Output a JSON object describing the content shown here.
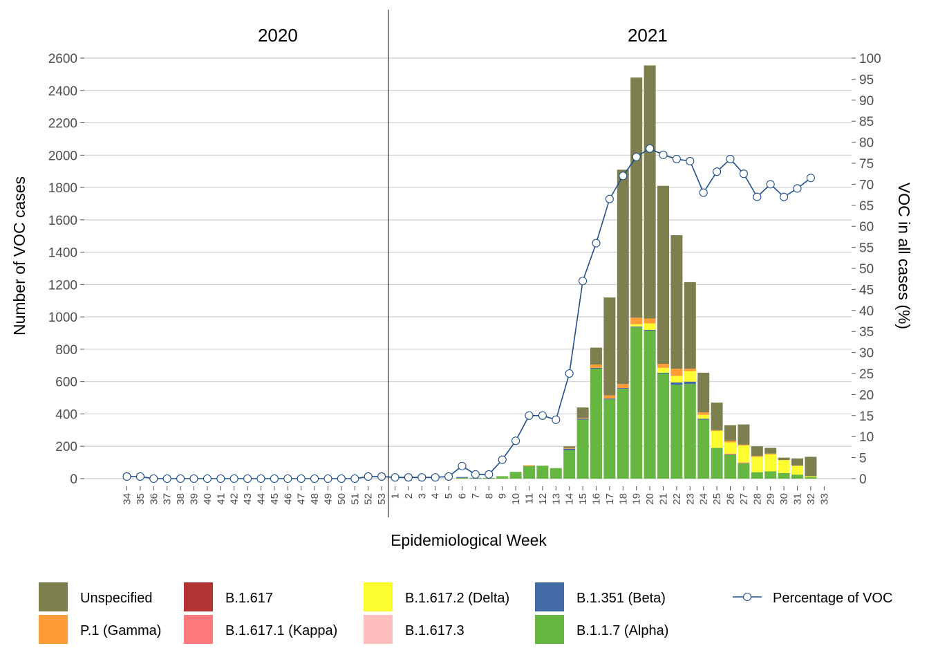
{
  "chart_data": {
    "type": "bar",
    "stacked": true,
    "title": "",
    "xlabel": "Epidemiological Week",
    "ylabel": "Number of VOC cases",
    "y2label": "VOC in all cases (%)",
    "ylim": [
      0,
      2600
    ],
    "y2lim": [
      0,
      100
    ],
    "yticks": [
      "0",
      "200",
      "400",
      "600",
      "800",
      "1000",
      "1200",
      "1400",
      "1600",
      "1800",
      "2000",
      "2200",
      "2400",
      "2600"
    ],
    "y2ticks": [
      "0",
      "5",
      "10",
      "15",
      "20",
      "25",
      "30",
      "35",
      "40",
      "45",
      "50",
      "55",
      "60",
      "65",
      "70",
      "75",
      "80",
      "85",
      "90",
      "95",
      "100"
    ],
    "grid": true,
    "legend_position": "bottom",
    "years": [
      {
        "label": "2020",
        "first_week_index": 0,
        "last_week_index": 19
      },
      {
        "label": "2021",
        "first_week_index": 20,
        "last_week_index": 52
      }
    ],
    "categories": [
      "34",
      "35",
      "36",
      "37",
      "38",
      "39",
      "40",
      "41",
      "42",
      "43",
      "44",
      "45",
      "46",
      "47",
      "48",
      "49",
      "50",
      "51",
      "52",
      "53",
      "1",
      "2",
      "3",
      "4",
      "5",
      "6",
      "7",
      "8",
      "9",
      "10",
      "11",
      "12",
      "13",
      "14",
      "15",
      "16",
      "17",
      "18",
      "19",
      "20",
      "21",
      "22",
      "23",
      "24",
      "25",
      "26",
      "27",
      "28",
      "29",
      "30",
      "31",
      "32",
      "33"
    ],
    "series": [
      {
        "name": "B.1.1.7 (Alpha)",
        "color": "#66b642",
        "values": [
          0,
          0,
          0,
          0,
          0,
          0,
          0,
          0,
          0,
          0,
          0,
          0,
          0,
          0,
          0,
          0,
          0,
          0,
          0,
          0,
          0,
          0,
          0,
          0,
          0,
          5,
          3,
          5,
          15,
          42,
          78,
          80,
          65,
          175,
          365,
          680,
          490,
          555,
          935,
          915,
          650,
          580,
          585,
          365,
          190,
          150,
          95,
          40,
          45,
          35,
          25,
          10,
          0
        ]
      },
      {
        "name": "B.1.351 (Beta)",
        "color": "#436aa4",
        "values": [
          0,
          0,
          0,
          0,
          0,
          0,
          0,
          0,
          0,
          0,
          0,
          0,
          0,
          0,
          0,
          0,
          0,
          0,
          0,
          0,
          0,
          0,
          0,
          0,
          0,
          5,
          2,
          0,
          0,
          0,
          0,
          0,
          0,
          10,
          5,
          5,
          5,
          5,
          5,
          5,
          5,
          15,
          15,
          5,
          0,
          0,
          0,
          0,
          0,
          0,
          0,
          0,
          0
        ]
      },
      {
        "name": "B.1.617",
        "color": "#b33333",
        "values": [
          0,
          0,
          0,
          0,
          0,
          0,
          0,
          0,
          0,
          0,
          0,
          0,
          0,
          0,
          0,
          0,
          0,
          0,
          0,
          0,
          0,
          0,
          0,
          0,
          0,
          0,
          0,
          0,
          0,
          0,
          0,
          0,
          0,
          0,
          0,
          0,
          0,
          0,
          0,
          0,
          0,
          0,
          0,
          0,
          0,
          0,
          0,
          0,
          0,
          0,
          0,
          0,
          0
        ]
      },
      {
        "name": "B.1.617.1 (Kappa)",
        "color": "#ff7b7b",
        "values": [
          0,
          0,
          0,
          0,
          0,
          0,
          0,
          0,
          0,
          0,
          0,
          0,
          0,
          0,
          0,
          0,
          0,
          0,
          0,
          0,
          0,
          0,
          0,
          0,
          0,
          0,
          0,
          0,
          0,
          0,
          0,
          0,
          0,
          0,
          0,
          0,
          0,
          0,
          0,
          0,
          0,
          0,
          0,
          0,
          0,
          5,
          5,
          0,
          0,
          0,
          0,
          0,
          0
        ]
      },
      {
        "name": "B.1.617.2 (Delta)",
        "color": "#fcfc2e",
        "values": [
          0,
          0,
          0,
          0,
          0,
          0,
          0,
          0,
          0,
          0,
          0,
          0,
          0,
          0,
          0,
          0,
          0,
          0,
          0,
          0,
          0,
          0,
          0,
          0,
          0,
          0,
          0,
          0,
          0,
          0,
          0,
          0,
          0,
          0,
          0,
          0,
          0,
          0,
          15,
          40,
          30,
          40,
          65,
          25,
          105,
          70,
          105,
          95,
          105,
          80,
          55,
          5,
          0
        ]
      },
      {
        "name": "B.1.617.3",
        "color": "#ffbdbd",
        "values": [
          0,
          0,
          0,
          0,
          0,
          0,
          0,
          0,
          0,
          0,
          0,
          0,
          0,
          0,
          0,
          0,
          0,
          0,
          0,
          0,
          0,
          0,
          0,
          0,
          0,
          0,
          0,
          0,
          0,
          0,
          0,
          0,
          0,
          0,
          0,
          0,
          0,
          0,
          0,
          0,
          0,
          0,
          0,
          0,
          0,
          0,
          0,
          0,
          0,
          0,
          0,
          0,
          0
        ]
      },
      {
        "name": "P.1 (Gamma)",
        "color": "#ff9c38",
        "values": [
          0,
          0,
          0,
          0,
          0,
          0,
          0,
          0,
          0,
          0,
          0,
          0,
          0,
          0,
          0,
          0,
          0,
          0,
          0,
          0,
          0,
          0,
          0,
          0,
          0,
          0,
          0,
          0,
          0,
          0,
          5,
          0,
          0,
          5,
          5,
          20,
          20,
          25,
          40,
          30,
          25,
          45,
          15,
          15,
          5,
          10,
          5,
          5,
          5,
          0,
          0,
          0,
          0
        ]
      },
      {
        "name": "Unspecified",
        "color": "#7d7f4f",
        "values": [
          0,
          0,
          0,
          0,
          0,
          0,
          0,
          0,
          0,
          0,
          0,
          0,
          0,
          0,
          0,
          0,
          0,
          0,
          0,
          0,
          0,
          0,
          0,
          0,
          0,
          0,
          0,
          0,
          0,
          0,
          0,
          0,
          0,
          10,
          65,
          105,
          605,
          1325,
          1485,
          1565,
          1100,
          825,
          535,
          245,
          170,
          95,
          125,
          60,
          35,
          15,
          45,
          120,
          0
        ]
      }
    ],
    "line_series": {
      "name": "Percentage of VOC",
      "color": "#1f4e89",
      "axis": "y2",
      "values": [
        0.5,
        0.5,
        0,
        0,
        0,
        0,
        0,
        0,
        0,
        0,
        0,
        0,
        0,
        0,
        0,
        0,
        0,
        0,
        0.5,
        0.5,
        0.3,
        0.3,
        0.3,
        0.3,
        0.5,
        3,
        1,
        1,
        4.5,
        9,
        15,
        15,
        14,
        25,
        47,
        56,
        66.5,
        72,
        76.5,
        78.5,
        77,
        76,
        75.5,
        68,
        73,
        76,
        72.5,
        67,
        70,
        67,
        69,
        71.5,
        null
      ]
    }
  },
  "legend": {
    "items": [
      {
        "label": "Unspecified",
        "color": "#7d7f4f"
      },
      {
        "label": "P.1 (Gamma)",
        "color": "#ff9c38"
      },
      {
        "label": "B.1.617",
        "color": "#b33333"
      },
      {
        "label": "B.1.617.1 (Kappa)",
        "color": "#ff7b7b"
      },
      {
        "label": "B.1.617.2 (Delta)",
        "color": "#fcfc2e"
      },
      {
        "label": "B.1.617.3",
        "color": "#ffbdbd"
      },
      {
        "label": "B.1.351 (Beta)",
        "color": "#436aa4"
      },
      {
        "label": "B.1.1.7 (Alpha)",
        "color": "#66b642"
      }
    ],
    "line_label": "Percentage of VOC"
  }
}
